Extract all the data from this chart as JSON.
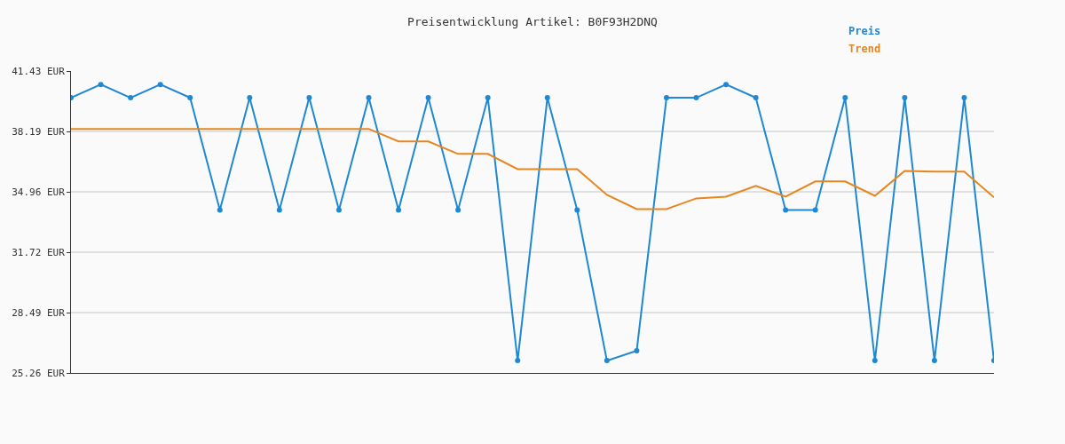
{
  "chart_data": {
    "type": "line",
    "title": "Preisentwicklung Artikel: B0F93H2DNQ",
    "categories": [
      null,
      null,
      null,
      null,
      null,
      null,
      null,
      null,
      null,
      null,
      null,
      null,
      null,
      null,
      null,
      null,
      null,
      null,
      null,
      null,
      null,
      null,
      null,
      null,
      null,
      null,
      null,
      null,
      null,
      null,
      null,
      null
    ],
    "series": [
      {
        "name": "Preis",
        "color": "#1f88d2",
        "marker": "circle",
        "values": [
          40.0,
          40.71,
          40.0,
          40.71,
          40.0,
          33.99,
          40.0,
          33.99,
          40.0,
          33.99,
          40.0,
          33.99,
          40.0,
          33.99,
          40.0,
          25.92,
          40.0,
          33.99,
          25.92,
          26.45,
          40.0,
          40.0,
          40.71,
          40.0,
          33.99,
          33.99,
          40.0,
          25.92,
          40.0,
          25.92,
          40.0,
          25.92
        ]
      },
      {
        "name": "Trend",
        "color": "#e6861f",
        "marker": "none",
        "values": [
          38.33,
          38.33,
          38.33,
          38.33,
          38.33,
          38.33,
          38.33,
          38.33,
          38.33,
          38.33,
          38.33,
          37.66,
          37.66,
          36.99,
          36.99,
          36.18,
          36.18,
          36.18,
          34.8,
          34.04,
          34.04,
          34.61,
          34.7,
          35.28,
          34.7,
          35.52,
          35.52,
          34.75,
          36.08,
          36.04,
          36.04,
          34.66
        ]
      }
    ],
    "ylim": [
      25.26,
      41.43
    ],
    "yticks": [
      {
        "value": 25.26,
        "label": "25.26 EUR"
      },
      {
        "value": 28.49,
        "label": "28.49 EUR"
      },
      {
        "value": 31.72,
        "label": "31.72 EUR"
      },
      {
        "value": 34.96,
        "label": "34.96 EUR"
      },
      {
        "value": 38.19,
        "label": "38.19 EUR"
      },
      {
        "value": 41.43,
        "label": "41.43 EUR"
      }
    ],
    "grid": "y",
    "legend": "top right",
    "tick_labels": "y",
    "line_style": "solid"
  }
}
